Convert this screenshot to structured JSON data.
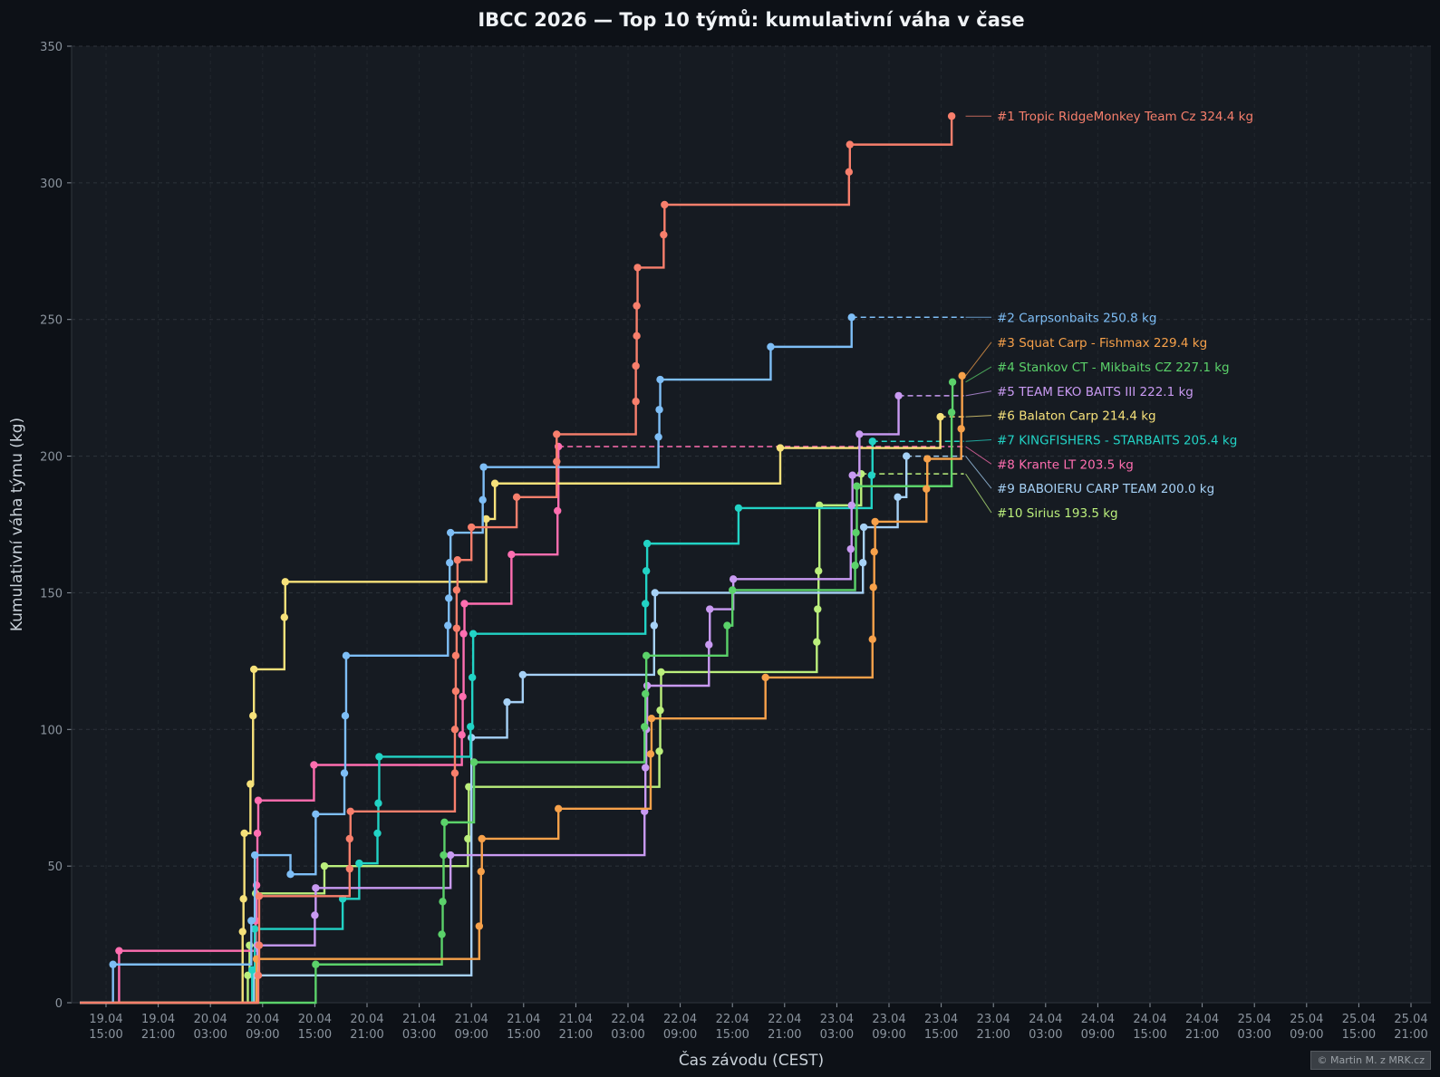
{
  "chart_data": {
    "type": "line",
    "title": "IBCC 2026 — Top 10 týmů: kumulativní váha v čase",
    "xlabel": "Čas závodu (CEST)",
    "ylabel": "Kumulativní váha týmu (kg)",
    "ylim": [
      0,
      350
    ],
    "y_ticks": [
      0,
      50,
      100,
      150,
      200,
      250,
      300,
      350
    ],
    "x_ticks": [
      [
        "19.04",
        "15:00"
      ],
      [
        "19.04",
        "21:00"
      ],
      [
        "20.04",
        "03:00"
      ],
      [
        "20.04",
        "09:00"
      ],
      [
        "20.04",
        "15:00"
      ],
      [
        "20.04",
        "21:00"
      ],
      [
        "21.04",
        "03:00"
      ],
      [
        "21.04",
        "09:00"
      ],
      [
        "21.04",
        "15:00"
      ],
      [
        "21.04",
        "21:00"
      ],
      [
        "22.04",
        "03:00"
      ],
      [
        "22.04",
        "09:00"
      ],
      [
        "22.04",
        "15:00"
      ],
      [
        "22.04",
        "21:00"
      ],
      [
        "23.04",
        "03:00"
      ],
      [
        "23.04",
        "09:00"
      ],
      [
        "23.04",
        "15:00"
      ],
      [
        "23.04",
        "21:00"
      ],
      [
        "24.04",
        "03:00"
      ],
      [
        "24.04",
        "09:00"
      ],
      [
        "24.04",
        "15:00"
      ],
      [
        "24.04",
        "21:00"
      ],
      [
        "25.04",
        "03:00"
      ],
      [
        "25.04",
        "09:00"
      ],
      [
        "25.04",
        "15:00"
      ],
      [
        "25.04",
        "21:00"
      ]
    ],
    "x_unit": "hours since 19.04 15:00",
    "grid": true,
    "legend": "labels at right end of each series",
    "series": [
      {
        "name": "Tropic RidgeMonkey Team Cz",
        "rank": "#1",
        "total": "324.4 kg",
        "color": "#f87f6c",
        "points": [
          [
            17.5,
            10
          ],
          [
            17.6,
            21
          ],
          [
            17.6,
            39
          ],
          [
            28.0,
            49
          ],
          [
            28.0,
            60
          ],
          [
            28.1,
            70
          ],
          [
            40.1,
            84
          ],
          [
            40.1,
            100
          ],
          [
            40.2,
            114
          ],
          [
            40.2,
            127
          ],
          [
            40.3,
            137
          ],
          [
            40.3,
            151
          ],
          [
            40.4,
            162
          ],
          [
            42.0,
            174
          ],
          [
            47.2,
            185
          ],
          [
            51.8,
            198
          ],
          [
            51.8,
            208
          ],
          [
            60.9,
            220
          ],
          [
            60.9,
            233
          ],
          [
            61.0,
            244
          ],
          [
            61.0,
            255
          ],
          [
            61.1,
            269
          ],
          [
            64.1,
            281
          ],
          [
            64.2,
            292
          ],
          [
            85.4,
            304
          ],
          [
            85.5,
            314
          ],
          [
            97.2,
            324.4
          ]
        ]
      },
      {
        "name": "Carpsonbaits",
        "rank": "#2",
        "total": "250.8 kg",
        "color": "#7ebef6",
        "points": [
          [
            0.8,
            14
          ],
          [
            16.7,
            30
          ],
          [
            17.1,
            54
          ],
          [
            21.2,
            47
          ],
          [
            24.1,
            69
          ],
          [
            27.4,
            84
          ],
          [
            27.5,
            105
          ],
          [
            27.6,
            127
          ],
          [
            39.3,
            138
          ],
          [
            39.4,
            148
          ],
          [
            39.5,
            161
          ],
          [
            39.6,
            172
          ],
          [
            43.3,
            184
          ],
          [
            43.4,
            196
          ],
          [
            63.5,
            207
          ],
          [
            63.6,
            217
          ],
          [
            63.7,
            228
          ],
          [
            76.4,
            240
          ],
          [
            85.7,
            250.8
          ]
        ]
      },
      {
        "name": "Squat Carp - Fishmax",
        "rank": "#3",
        "total": "229.4 kg",
        "color": "#f7a14a",
        "points": [
          [
            17.3,
            16
          ],
          [
            42.9,
            28
          ],
          [
            43.1,
            48
          ],
          [
            43.2,
            60
          ],
          [
            52.0,
            71
          ],
          [
            62.6,
            91
          ],
          [
            62.7,
            104
          ],
          [
            75.8,
            119
          ],
          [
            88.1,
            133
          ],
          [
            88.2,
            152
          ],
          [
            88.3,
            165
          ],
          [
            88.4,
            176
          ],
          [
            94.3,
            188
          ],
          [
            94.4,
            199
          ],
          [
            98.3,
            210
          ],
          [
            98.4,
            229.4
          ]
        ]
      },
      {
        "name": "Stankov CT - Mikbaits CZ",
        "rank": "#4",
        "total": "227.1 kg",
        "color": "#5bd26a",
        "points": [
          [
            24.1,
            14
          ],
          [
            38.6,
            25
          ],
          [
            38.7,
            37
          ],
          [
            38.8,
            54
          ],
          [
            38.9,
            66
          ],
          [
            42.3,
            88
          ],
          [
            61.9,
            101
          ],
          [
            62.0,
            113
          ],
          [
            62.1,
            127
          ],
          [
            71.4,
            138
          ],
          [
            72.0,
            151
          ],
          [
            86.1,
            160
          ],
          [
            86.2,
            172
          ],
          [
            86.3,
            189
          ],
          [
            97.2,
            216
          ],
          [
            97.3,
            227.1
          ]
        ]
      },
      {
        "name": "TEAM EKO BAITS III",
        "rank": "#5",
        "total": "222.1 kg",
        "color": "#c99af2",
        "points": [
          [
            17.4,
            21
          ],
          [
            24.0,
            32
          ],
          [
            24.1,
            42
          ],
          [
            39.6,
            54
          ],
          [
            61.9,
            70
          ],
          [
            62.0,
            86
          ],
          [
            62.1,
            100
          ],
          [
            62.2,
            116
          ],
          [
            69.3,
            131
          ],
          [
            69.4,
            144
          ],
          [
            72.1,
            155
          ],
          [
            85.6,
            166
          ],
          [
            85.7,
            182
          ],
          [
            85.8,
            193
          ],
          [
            86.6,
            208
          ],
          [
            91.1,
            222.1
          ]
        ]
      },
      {
        "name": "Balaton Carp",
        "rank": "#6",
        "total": "214.4 kg",
        "color": "#f6e17a",
        "points": [
          [
            15.7,
            26
          ],
          [
            15.8,
            38
          ],
          [
            15.9,
            62
          ],
          [
            16.6,
            80
          ],
          [
            16.9,
            105
          ],
          [
            17.0,
            122
          ],
          [
            20.5,
            141
          ],
          [
            20.6,
            154
          ],
          [
            43.7,
            177
          ],
          [
            44.7,
            190
          ],
          [
            77.5,
            203
          ],
          [
            95.9,
            214.4
          ]
        ]
      },
      {
        "name": "KINGFISHERS - STARBAITS",
        "rank": "#7",
        "total": "205.4 kg",
        "color": "#22d3c5",
        "points": [
          [
            16.8,
            12
          ],
          [
            17.1,
            27
          ],
          [
            27.2,
            38
          ],
          [
            29.1,
            51
          ],
          [
            31.2,
            62
          ],
          [
            31.3,
            73
          ],
          [
            31.4,
            90
          ],
          [
            41.9,
            101
          ],
          [
            42.1,
            119
          ],
          [
            42.2,
            135
          ],
          [
            62.0,
            146
          ],
          [
            62.1,
            158
          ],
          [
            62.2,
            168
          ],
          [
            72.7,
            181
          ],
          [
            88.0,
            193
          ],
          [
            88.1,
            205.4
          ]
        ]
      },
      {
        "name": "Krante LT",
        "rank": "#8",
        "total": "203.5 kg",
        "color": "#ff6eb0",
        "points": [
          [
            1.5,
            19
          ],
          [
            17.2,
            30
          ],
          [
            17.3,
            43
          ],
          [
            17.4,
            62
          ],
          [
            17.5,
            74
          ],
          [
            23.9,
            87
          ],
          [
            40.9,
            98
          ],
          [
            41.0,
            112
          ],
          [
            41.1,
            135
          ],
          [
            41.2,
            146
          ],
          [
            46.6,
            164
          ],
          [
            51.9,
            180
          ],
          [
            52.0,
            203.5
          ]
        ]
      },
      {
        "name": "BABOIERU CARP TEAM",
        "rank": "#9",
        "total": "200.0 kg",
        "color": "#a6d1f6",
        "points": [
          [
            17.0,
            10
          ],
          [
            42.0,
            97
          ],
          [
            46.1,
            110
          ],
          [
            47.9,
            120
          ],
          [
            63.0,
            138
          ],
          [
            63.1,
            150
          ],
          [
            87.0,
            161
          ],
          [
            87.1,
            174
          ],
          [
            91.0,
            185
          ],
          [
            92.0,
            200.0
          ]
        ]
      },
      {
        "name": "Sirius",
        "rank": "#10",
        "total": "193.5 kg",
        "color": "#bbef7c",
        "points": [
          [
            16.3,
            10
          ],
          [
            16.5,
            21
          ],
          [
            17.2,
            40
          ],
          [
            25.1,
            50
          ],
          [
            41.6,
            60
          ],
          [
            41.7,
            79
          ],
          [
            63.6,
            92
          ],
          [
            63.7,
            107
          ],
          [
            63.8,
            121
          ],
          [
            81.7,
            132
          ],
          [
            81.8,
            144
          ],
          [
            81.9,
            158
          ],
          [
            82.0,
            182
          ],
          [
            86.8,
            193.5
          ]
        ]
      }
    ],
    "label_y": [
      324.4,
      250.8,
      241.7,
      232.7,
      223.8,
      214.9,
      206.0,
      197.1,
      188.2,
      179.3
    ]
  },
  "watermark": "© Martin M. z MRK.cz"
}
